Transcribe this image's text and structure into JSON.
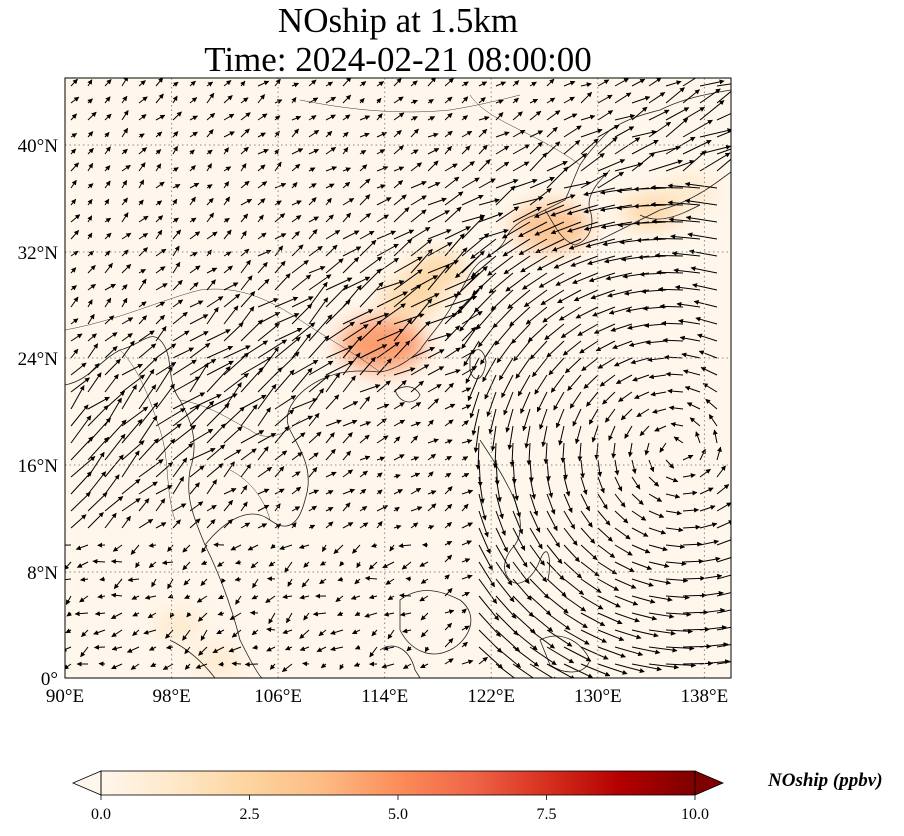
{
  "title": {
    "line1": "NOship at 1.5km",
    "line2": "Time: 2024-02-21 08:00:00"
  },
  "axes": {
    "lon_ticks": [
      "90°E",
      "98°E",
      "106°E",
      "114°E",
      "122°E",
      "130°E",
      "138°E"
    ],
    "lat_ticks": [
      "0°",
      "8°N",
      "16°N",
      "24°N",
      "32°N",
      "40°N"
    ],
    "lon_range": [
      90,
      140
    ],
    "lat_range": [
      0,
      45
    ]
  },
  "colorbar": {
    "title": "NOship (ppbv)",
    "tick_labels": [
      "0.0",
      "2.5",
      "5.0",
      "7.5",
      "10.0"
    ],
    "range": [
      0,
      10
    ],
    "extend": "both",
    "colormap": "OrRd",
    "colors": [
      "#fff7ec",
      "#fee8c8",
      "#fdd49e",
      "#fdbb84",
      "#fc8d59",
      "#ef6548",
      "#d7301f",
      "#b30000",
      "#7f0000"
    ]
  },
  "field": {
    "name": "NOship",
    "units": "ppbv",
    "hotspots": [
      {
        "lon": 113.8,
        "lat": 25.0,
        "value": 5.0
      },
      {
        "lon": 116.0,
        "lat": 28.5,
        "value": 2.6
      },
      {
        "lon": 118.0,
        "lat": 30.5,
        "value": 2.3
      },
      {
        "lon": 126.5,
        "lat": 33.8,
        "value": 4.2
      },
      {
        "lon": 134.0,
        "lat": 35.0,
        "value": 2.0
      },
      {
        "lon": 137.0,
        "lat": 36.5,
        "value": 1.6
      },
      {
        "lon": 98.5,
        "lat": 4.0,
        "value": 1.2
      },
      {
        "lon": 101.5,
        "lat": 1.3,
        "value": 1.3
      }
    ]
  },
  "wind_vectors": {
    "description": "wind quiver at 1.5km, strong SW-NE flow over southern China to Japan, anticyclonic curvature over western Pacific"
  }
}
